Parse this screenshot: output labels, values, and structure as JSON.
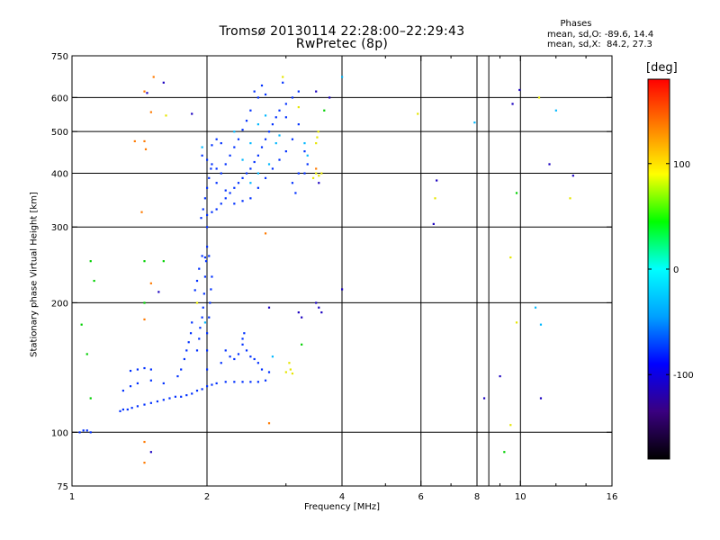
{
  "chart_data": {
    "type": "scatter",
    "title": "Tromsø 20130114 22:28:00–22:29:43",
    "subtitle": "RwPretec (8p)",
    "xlabel": "Frequency [MHz]",
    "ylabel": "Stationary phase Virtual Height [km]",
    "x_scale": "log2",
    "y_scale": "log",
    "xlim": [
      1,
      16
    ],
    "ylim": [
      75,
      750
    ],
    "x_ticks": [
      1,
      2,
      4,
      6,
      8,
      10,
      16
    ],
    "x_minor_ticks": [
      3,
      5,
      7,
      9,
      12,
      14
    ],
    "y_ticks": [
      75,
      100,
      200,
      300,
      400,
      500,
      600,
      750
    ],
    "grid": true,
    "colorbar": {
      "unit": "[deg]",
      "range": [
        -180,
        180
      ],
      "ticks": [
        100,
        0,
        -100
      ],
      "colormap": [
        "#000000",
        "#3a0080",
        "#0000ff",
        "#00a0ff",
        "#00ffff",
        "#00ff00",
        "#ffff00",
        "#ff8000",
        "#ff0000"
      ]
    },
    "legend": {
      "title": "Phases",
      "line1": "mean, sd,O: -89.6, 14.4",
      "line2": "mean, sd,X:  84.2, 27.3"
    },
    "scatter_points": [
      [
        1.06,
        101,
        "b"
      ],
      [
        1.08,
        101,
        "b"
      ],
      [
        1.04,
        100,
        "b"
      ],
      [
        1.1,
        100,
        "b"
      ],
      [
        1.3,
        125,
        "b"
      ],
      [
        1.35,
        128,
        "b"
      ],
      [
        1.4,
        130,
        "b"
      ],
      [
        1.5,
        132,
        "b"
      ],
      [
        1.6,
        130,
        "b"
      ],
      [
        1.35,
        139,
        "b"
      ],
      [
        1.4,
        140,
        "b"
      ],
      [
        1.45,
        141,
        "b"
      ],
      [
        1.5,
        140,
        "b"
      ],
      [
        1.28,
        112,
        "b"
      ],
      [
        1.3,
        113,
        "b"
      ],
      [
        1.33,
        113,
        "b"
      ],
      [
        1.36,
        114,
        "b"
      ],
      [
        1.4,
        115,
        "b"
      ],
      [
        1.45,
        116,
        "b"
      ],
      [
        1.5,
        117,
        "b"
      ],
      [
        1.55,
        118,
        "b"
      ],
      [
        1.6,
        119,
        "b"
      ],
      [
        1.65,
        120,
        "b"
      ],
      [
        1.7,
        121,
        "b"
      ],
      [
        1.75,
        121,
        "b"
      ],
      [
        1.8,
        122,
        "b"
      ],
      [
        1.85,
        123,
        "b"
      ],
      [
        1.9,
        125,
        "b"
      ],
      [
        1.95,
        126,
        "b"
      ],
      [
        2.0,
        128,
        "b"
      ],
      [
        2.05,
        129,
        "b"
      ],
      [
        2.1,
        130,
        "b"
      ],
      [
        2.2,
        131,
        "b"
      ],
      [
        2.3,
        131,
        "b"
      ],
      [
        2.4,
        131,
        "b"
      ],
      [
        2.5,
        131,
        "b"
      ],
      [
        2.6,
        131,
        "b"
      ],
      [
        2.7,
        132,
        "b"
      ],
      [
        1.72,
        135,
        "b"
      ],
      [
        1.75,
        140,
        "b"
      ],
      [
        1.78,
        148,
        "b"
      ],
      [
        1.8,
        155,
        "b"
      ],
      [
        1.82,
        162,
        "b"
      ],
      [
        1.84,
        170,
        "b"
      ],
      [
        1.85,
        180,
        "b"
      ],
      [
        1.9,
        155,
        "b"
      ],
      [
        1.92,
        165,
        "b"
      ],
      [
        1.93,
        175,
        "b"
      ],
      [
        1.95,
        185,
        "b"
      ],
      [
        1.96,
        195,
        "b"
      ],
      [
        1.97,
        210,
        "b"
      ],
      [
        1.98,
        230,
        "b"
      ],
      [
        1.99,
        250,
        "b"
      ],
      [
        2.0,
        270,
        "b"
      ],
      [
        2.0,
        300,
        "b"
      ],
      [
        2.0,
        140,
        "b"
      ],
      [
        2.0,
        155,
        "b"
      ],
      [
        2.0,
        170,
        "b"
      ],
      [
        2.02,
        185,
        "b"
      ],
      [
        2.03,
        200,
        "b"
      ],
      [
        2.04,
        215,
        "b"
      ],
      [
        2.05,
        230,
        "b"
      ],
      [
        1.98,
        255,
        "b"
      ],
      [
        1.95,
        257,
        "b"
      ],
      [
        2.02,
        257,
        "b"
      ],
      [
        1.88,
        214,
        "b"
      ],
      [
        1.9,
        225,
        "b"
      ],
      [
        1.92,
        240,
        "b"
      ],
      [
        2.2,
        155,
        "b"
      ],
      [
        2.25,
        150,
        "b"
      ],
      [
        2.3,
        148,
        "b"
      ],
      [
        2.35,
        152,
        "b"
      ],
      [
        2.4,
        160,
        "b"
      ],
      [
        2.45,
        155,
        "b"
      ],
      [
        2.5,
        150,
        "b"
      ],
      [
        2.55,
        148,
        "b"
      ],
      [
        2.6,
        145,
        "b"
      ],
      [
        2.65,
        140,
        "b"
      ],
      [
        2.75,
        138,
        "b"
      ],
      [
        2.4,
        165,
        "b"
      ],
      [
        2.42,
        170,
        "b"
      ],
      [
        2.15,
        145,
        "b"
      ],
      [
        1.94,
        315,
        "b"
      ],
      [
        1.96,
        330,
        "b"
      ],
      [
        1.98,
        350,
        "b"
      ],
      [
        2.0,
        370,
        "b"
      ],
      [
        2.02,
        390,
        "b"
      ],
      [
        2.04,
        410,
        "b"
      ],
      [
        1.95,
        440,
        "b"
      ],
      [
        2.0,
        430,
        "b"
      ],
      [
        2.05,
        420,
        "b"
      ],
      [
        2.1,
        410,
        "b"
      ],
      [
        2.15,
        400,
        "b"
      ],
      [
        2.0,
        320,
        "b"
      ],
      [
        2.05,
        325,
        "b"
      ],
      [
        2.1,
        330,
        "b"
      ],
      [
        2.15,
        340,
        "b"
      ],
      [
        2.2,
        350,
        "b"
      ],
      [
        2.25,
        360,
        "b"
      ],
      [
        2.3,
        370,
        "b"
      ],
      [
        2.35,
        380,
        "b"
      ],
      [
        2.4,
        390,
        "b"
      ],
      [
        2.45,
        400,
        "b"
      ],
      [
        2.5,
        410,
        "b"
      ],
      [
        2.55,
        425,
        "b"
      ],
      [
        2.6,
        440,
        "b"
      ],
      [
        2.65,
        460,
        "b"
      ],
      [
        2.7,
        480,
        "b"
      ],
      [
        2.75,
        500,
        "b"
      ],
      [
        2.8,
        520,
        "b"
      ],
      [
        2.85,
        540,
        "b"
      ],
      [
        2.6,
        600,
        "b"
      ],
      [
        2.55,
        620,
        "b"
      ],
      [
        2.65,
        640,
        "b"
      ],
      [
        2.7,
        610,
        "b"
      ],
      [
        2.5,
        560,
        "b"
      ],
      [
        2.45,
        530,
        "b"
      ],
      [
        2.4,
        505,
        "b"
      ],
      [
        2.35,
        480,
        "b"
      ],
      [
        2.3,
        460,
        "b"
      ],
      [
        2.25,
        440,
        "b"
      ],
      [
        2.2,
        420,
        "b"
      ],
      [
        2.1,
        480,
        "b"
      ],
      [
        2.05,
        465,
        "b"
      ],
      [
        2.15,
        470,
        "b"
      ],
      [
        2.1,
        380,
        "b"
      ],
      [
        2.2,
        365,
        "b"
      ],
      [
        2.3,
        340,
        "b"
      ],
      [
        2.4,
        345,
        "b"
      ],
      [
        2.5,
        350,
        "b"
      ],
      [
        2.6,
        370,
        "b"
      ],
      [
        2.7,
        390,
        "b"
      ],
      [
        2.8,
        410,
        "b"
      ],
      [
        2.9,
        430,
        "b"
      ],
      [
        3.0,
        450,
        "b"
      ],
      [
        3.1,
        480,
        "b"
      ],
      [
        3.2,
        520,
        "b"
      ],
      [
        2.9,
        560,
        "b"
      ],
      [
        3.0,
        580,
        "b"
      ],
      [
        3.1,
        600,
        "b"
      ],
      [
        3.2,
        620,
        "b"
      ],
      [
        2.95,
        650,
        "b"
      ],
      [
        3.0,
        540,
        "b"
      ],
      [
        3.3,
        450,
        "b"
      ],
      [
        3.35,
        420,
        "b"
      ],
      [
        3.2,
        400,
        "b"
      ],
      [
        3.1,
        380,
        "b"
      ],
      [
        3.15,
        360,
        "b"
      ],
      [
        3.3,
        400,
        "b"
      ],
      [
        2.3,
        500,
        "c"
      ],
      [
        2.4,
        430,
        "c"
      ],
      [
        2.5,
        470,
        "c"
      ],
      [
        2.6,
        520,
        "c"
      ],
      [
        2.7,
        545,
        "c"
      ],
      [
        2.5,
        380,
        "c"
      ],
      [
        2.6,
        400,
        "c"
      ],
      [
        2.75,
        420,
        "c"
      ],
      [
        2.85,
        470,
        "c"
      ],
      [
        2.9,
        490,
        "c"
      ],
      [
        3.3,
        470,
        "c"
      ],
      [
        3.35,
        440,
        "c"
      ],
      [
        2.8,
        150,
        "c"
      ],
      [
        1.98,
        180,
        "c"
      ],
      [
        3.45,
        390,
        "y"
      ],
      [
        3.5,
        400,
        "y"
      ],
      [
        3.55,
        395,
        "y"
      ],
      [
        3.6,
        400,
        "y"
      ],
      [
        3.5,
        470,
        "y"
      ],
      [
        3.52,
        485,
        "y"
      ],
      [
        3.54,
        500,
        "y"
      ],
      [
        3.05,
        145,
        "y"
      ],
      [
        3.07,
        140,
        "y"
      ],
      [
        3.1,
        137,
        "y"
      ],
      [
        3.0,
        138,
        "y"
      ],
      [
        1.9,
        200,
        "y"
      ],
      [
        2.95,
        670,
        "y"
      ],
      [
        1.62,
        545,
        "y"
      ],
      [
        9.5,
        104,
        "y"
      ],
      [
        6.45,
        350,
        "y"
      ],
      [
        9.5,
        255,
        "y"
      ],
      [
        12.9,
        350,
        "y"
      ],
      [
        9.8,
        180,
        "y"
      ],
      [
        5.9,
        550,
        "y"
      ],
      [
        11.0,
        600,
        "y"
      ],
      [
        3.2,
        570,
        "y"
      ],
      [
        1.45,
        95,
        "o"
      ],
      [
        1.45,
        85,
        "o"
      ],
      [
        1.38,
        475,
        "o"
      ],
      [
        1.45,
        475,
        "o"
      ],
      [
        1.46,
        455,
        "o"
      ],
      [
        1.43,
        325,
        "o"
      ],
      [
        1.45,
        620,
        "o"
      ],
      [
        1.52,
        670,
        "o"
      ],
      [
        2.7,
        290,
        "o"
      ],
      [
        2.75,
        105,
        "o"
      ],
      [
        1.45,
        183,
        "o"
      ],
      [
        1.5,
        555,
        "o"
      ],
      [
        1.5,
        222,
        "o"
      ],
      [
        3.5,
        410,
        "o"
      ],
      [
        1.1,
        250,
        "g"
      ],
      [
        1.12,
        225,
        "g"
      ],
      [
        1.45,
        250,
        "g"
      ],
      [
        1.1,
        120,
        "g"
      ],
      [
        1.45,
        200,
        "g"
      ],
      [
        1.6,
        250,
        "g"
      ],
      [
        1.08,
        152,
        "g"
      ],
      [
        3.25,
        160,
        "g"
      ],
      [
        3.65,
        560,
        "g"
      ],
      [
        9.8,
        360,
        "g"
      ],
      [
        9.2,
        90,
        "g"
      ],
      [
        1.05,
        178,
        "g"
      ],
      [
        7.9,
        525,
        "c"
      ],
      [
        4.0,
        670,
        "c"
      ],
      [
        10.8,
        195,
        "c"
      ],
      [
        11.1,
        178,
        "c"
      ],
      [
        12.0,
        560,
        "c"
      ],
      [
        1.95,
        460,
        "c"
      ],
      [
        4.0,
        215,
        "d"
      ],
      [
        6.5,
        385,
        "d"
      ],
      [
        6.4,
        305,
        "d"
      ],
      [
        9.0,
        135,
        "d"
      ],
      [
        8.3,
        120,
        "d"
      ],
      [
        11.1,
        120,
        "d"
      ],
      [
        9.6,
        580,
        "d"
      ],
      [
        9.95,
        625,
        "d"
      ],
      [
        11.6,
        420,
        "d"
      ],
      [
        13.1,
        395,
        "d"
      ],
      [
        3.2,
        190,
        "d"
      ],
      [
        3.25,
        185,
        "d"
      ],
      [
        3.5,
        200,
        "d"
      ],
      [
        3.55,
        195,
        "d"
      ],
      [
        3.6,
        190,
        "d"
      ],
      [
        3.75,
        600,
        "d"
      ],
      [
        3.55,
        380,
        "d"
      ],
      [
        1.5,
        90,
        "d"
      ],
      [
        1.56,
        212,
        "d"
      ],
      [
        1.85,
        550,
        "d"
      ],
      [
        1.47,
        615,
        "d"
      ],
      [
        1.6,
        650,
        "d"
      ],
      [
        2.75,
        195,
        "d"
      ],
      [
        3.5,
        620,
        "d"
      ]
    ]
  }
}
